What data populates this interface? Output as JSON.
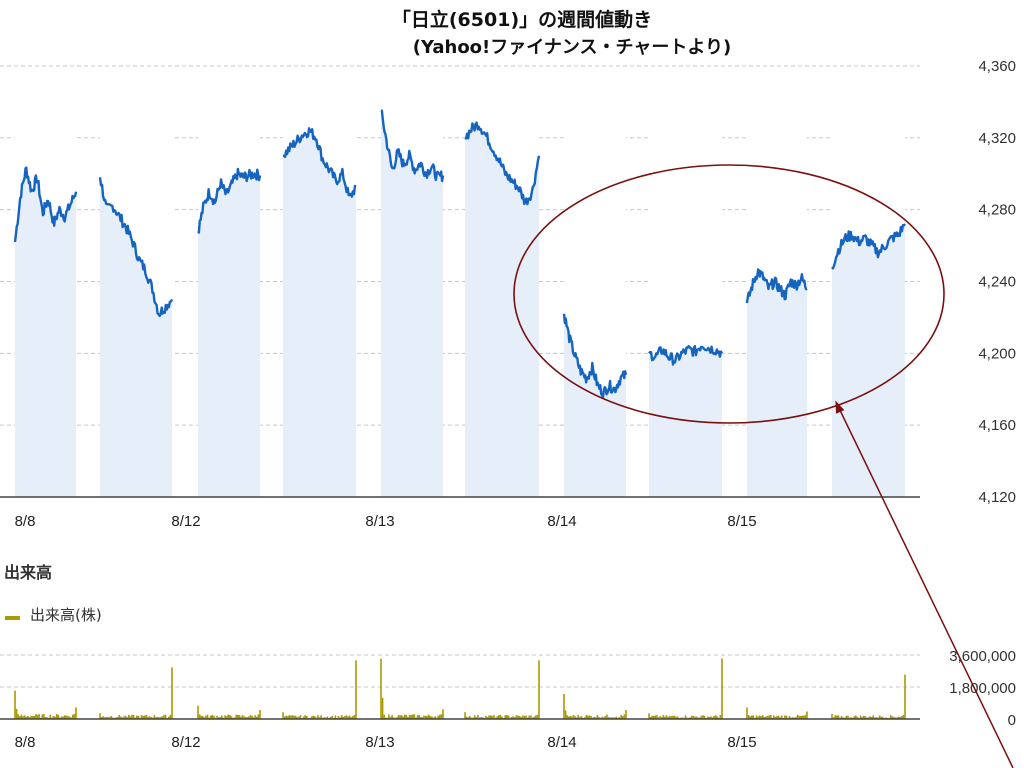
{
  "title_line1": "「日立(6501)」の週間値動き",
  "title_line2": "(Yahoo!ファイナンス・チャートより)",
  "volume_section_title": "出来高",
  "volume_legend": "出来高(株)",
  "colors": {
    "price_line": "#1565c0",
    "price_fill": "#e6eff9",
    "volume": "#a89a00",
    "annotation": "#7a1010",
    "grid": "#c8c8c8"
  },
  "chart_data": [
    {
      "type": "line",
      "title": "「日立(6501)」の週間値動き",
      "subtitle": "(Yahoo!ファイナンス・チャートより)",
      "ylim": [
        4120,
        4370
      ],
      "y_ticks": [
        4120,
        4160,
        4200,
        4240,
        4280,
        4320,
        4360
      ],
      "y_tick_labels": [
        "4,120",
        "4,160",
        "4,200",
        "4,240",
        "4,280",
        "4,320",
        "4,360"
      ],
      "x_tick_labels": [
        "8/8",
        "8/12",
        "8/13",
        "8/14",
        "8/15"
      ],
      "grid": "horizontal dashed",
      "sessions": [
        {
          "date": "8/8",
          "half": "AM",
          "points": [
            4262,
            4288,
            4303,
            4290,
            4298,
            4278,
            4286,
            4272,
            4280,
            4276,
            4283,
            4290
          ]
        },
        {
          "date": "8/8",
          "half": "PM",
          "points": [
            4298,
            4280,
            4282,
            4276,
            4270,
            4262,
            4252,
            4246,
            4236,
            4222,
            4226,
            4230
          ]
        },
        {
          "date": "8/12",
          "half": "AM",
          "points": [
            4268,
            4282,
            4290,
            4284,
            4295,
            4288,
            4294,
            4300,
            4298,
            4299,
            4300,
            4299
          ]
        },
        {
          "date": "8/12",
          "half": "PM",
          "points": [
            4310,
            4314,
            4318,
            4322,
            4324,
            4320,
            4308,
            4302,
            4296,
            4300,
            4286,
            4293
          ]
        },
        {
          "date": "8/13",
          "half": "AM",
          "points": [
            4335,
            4318,
            4302,
            4312,
            4305,
            4310,
            4302,
            4306,
            4300,
            4304,
            4298,
            4299
          ]
        },
        {
          "date": "8/13",
          "half": "PM",
          "points": [
            4320,
            4325,
            4328,
            4322,
            4315,
            4308,
            4300,
            4296,
            4292,
            4284,
            4290,
            4310
          ]
        },
        {
          "date": "8/14",
          "half": "AM",
          "points": [
            4222,
            4208,
            4198,
            4190,
            4186,
            4192,
            4182,
            4178,
            4182,
            4180,
            4186,
            4188
          ]
        },
        {
          "date": "8/14",
          "half": "PM",
          "points": [
            4200,
            4198,
            4202,
            4198,
            4196,
            4200,
            4202,
            4201,
            4205,
            4203,
            4202,
            4200
          ]
        },
        {
          "date": "8/15",
          "half": "AM",
          "points": [
            4228,
            4238,
            4246,
            4242,
            4236,
            4240,
            4236,
            4232,
            4240,
            4238,
            4242,
            4236
          ]
        },
        {
          "date": "8/15",
          "half": "PM",
          "points": [
            4248,
            4258,
            4264,
            4266,
            4262,
            4264,
            4260,
            4256,
            4260,
            4264,
            4266,
            4272
          ]
        }
      ]
    },
    {
      "type": "bar",
      "title": "出来高",
      "series_name": "出来高(株)",
      "ylim": [
        0,
        3600000
      ],
      "y_ticks": [
        0,
        1800000,
        3600000
      ],
      "y_tick_labels": [
        "0",
        "1,800,000",
        "3,600,000"
      ],
      "x_tick_labels": [
        "8/8",
        "8/12",
        "8/13",
        "8/14",
        "8/15"
      ],
      "session_volumes": [
        {
          "open": 1600000,
          "typical": 180000,
          "close": 650000
        },
        {
          "open": 320000,
          "typical": 150000,
          "close": 2900000
        },
        {
          "open": 750000,
          "typical": 160000,
          "close": 500000
        },
        {
          "open": 380000,
          "typical": 140000,
          "close": 3300000
        },
        {
          "open": 3400000,
          "typical": 170000,
          "close": 550000
        },
        {
          "open": 380000,
          "typical": 150000,
          "close": 3300000
        },
        {
          "open": 1400000,
          "typical": 160000,
          "close": 500000
        },
        {
          "open": 320000,
          "typical": 140000,
          "close": 3400000
        },
        {
          "open": 650000,
          "typical": 150000,
          "close": 420000
        },
        {
          "open": 280000,
          "typical": 140000,
          "close": 2500000
        }
      ]
    }
  ]
}
